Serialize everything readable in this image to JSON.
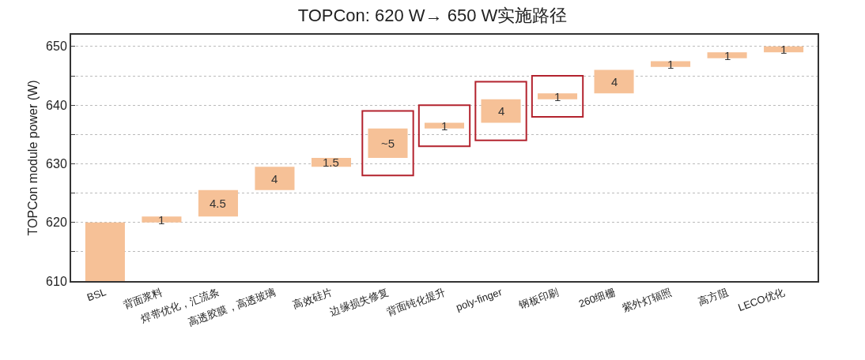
{
  "chart_data": {
    "type": "bar",
    "title": "TOPCon: 620 W→ 650 W实施路径",
    "ylabel": "TOPCon module power (W)",
    "categories": [
      "BSL",
      "背面浆料",
      "焊带优化，汇流条",
      "高透胶膜，高透玻璃",
      "高效硅片",
      "边缘损失修复",
      "背面钝化提升",
      "poly-finger",
      "钢板印刷",
      "260细栅",
      "紫外灯辐照",
      "高方阻",
      "LECO优化"
    ],
    "values": [
      620,
      1,
      4.5,
      4,
      1.5,
      5,
      1,
      4,
      1,
      4,
      1,
      1,
      1
    ],
    "base": [
      null,
      620,
      621,
      625.5,
      629.5,
      631,
      636,
      637,
      641,
      642,
      646.5,
      648,
      649
    ],
    "value_labels": [
      null,
      "1",
      "4.5",
      "4",
      "1.5",
      "~5",
      "1",
      "4",
      "1",
      "4",
      "1",
      "1",
      "1"
    ],
    "color": "#f6c197",
    "ylim": [
      610,
      652
    ],
    "yticks": [
      610,
      {
        "value": 615,
        "label": null
      },
      620,
      {
        "value": 625,
        "label": null
      },
      630,
      {
        "value": 635,
        "label": null
      },
      640,
      {
        "value": 645,
        "label": null
      },
      650
    ],
    "grid": "y"
  }
}
